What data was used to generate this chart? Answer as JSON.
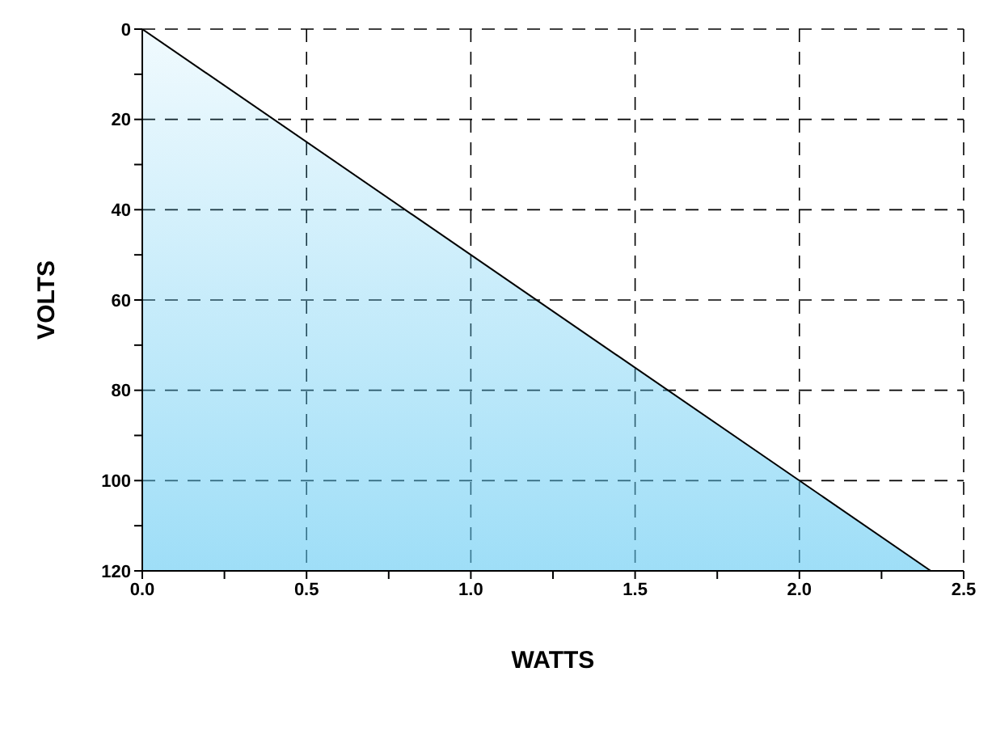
{
  "chart_data": {
    "type": "area",
    "xlabel": "WATTS",
    "ylabel": "VOLTS",
    "x": [
      0,
      2.4
    ],
    "series": [
      {
        "color": "#5ec8f2",
        "values": [
          0,
          120
        ]
      }
    ],
    "xlim": [
      0,
      2.5
    ],
    "xticks": [
      {
        "value": 0,
        "label": "0.0"
      },
      {
        "value": 0.25,
        "label": null
      },
      {
        "value": 0.5,
        "label": "0.5"
      },
      {
        "value": 0.75,
        "label": null
      },
      {
        "value": 1,
        "label": "1.0"
      },
      {
        "value": 1.25,
        "label": null
      },
      {
        "value": 1.5,
        "label": "1.5"
      },
      {
        "value": 1.75,
        "label": null
      },
      {
        "value": 2,
        "label": "2.0"
      },
      {
        "value": 2.25,
        "label": null
      },
      {
        "value": 2.5,
        "label": "2.5"
      }
    ],
    "ylim": [
      120,
      0
    ],
    "yticks": [
      0,
      {
        "value": 10,
        "label": null
      },
      20,
      {
        "value": 30,
        "label": null
      },
      40,
      {
        "value": 50,
        "label": null
      },
      60,
      {
        "value": 70,
        "label": null
      },
      80,
      {
        "value": 90,
        "label": null
      },
      100,
      {
        "value": 110,
        "label": null
      },
      120
    ],
    "grid": true
  }
}
